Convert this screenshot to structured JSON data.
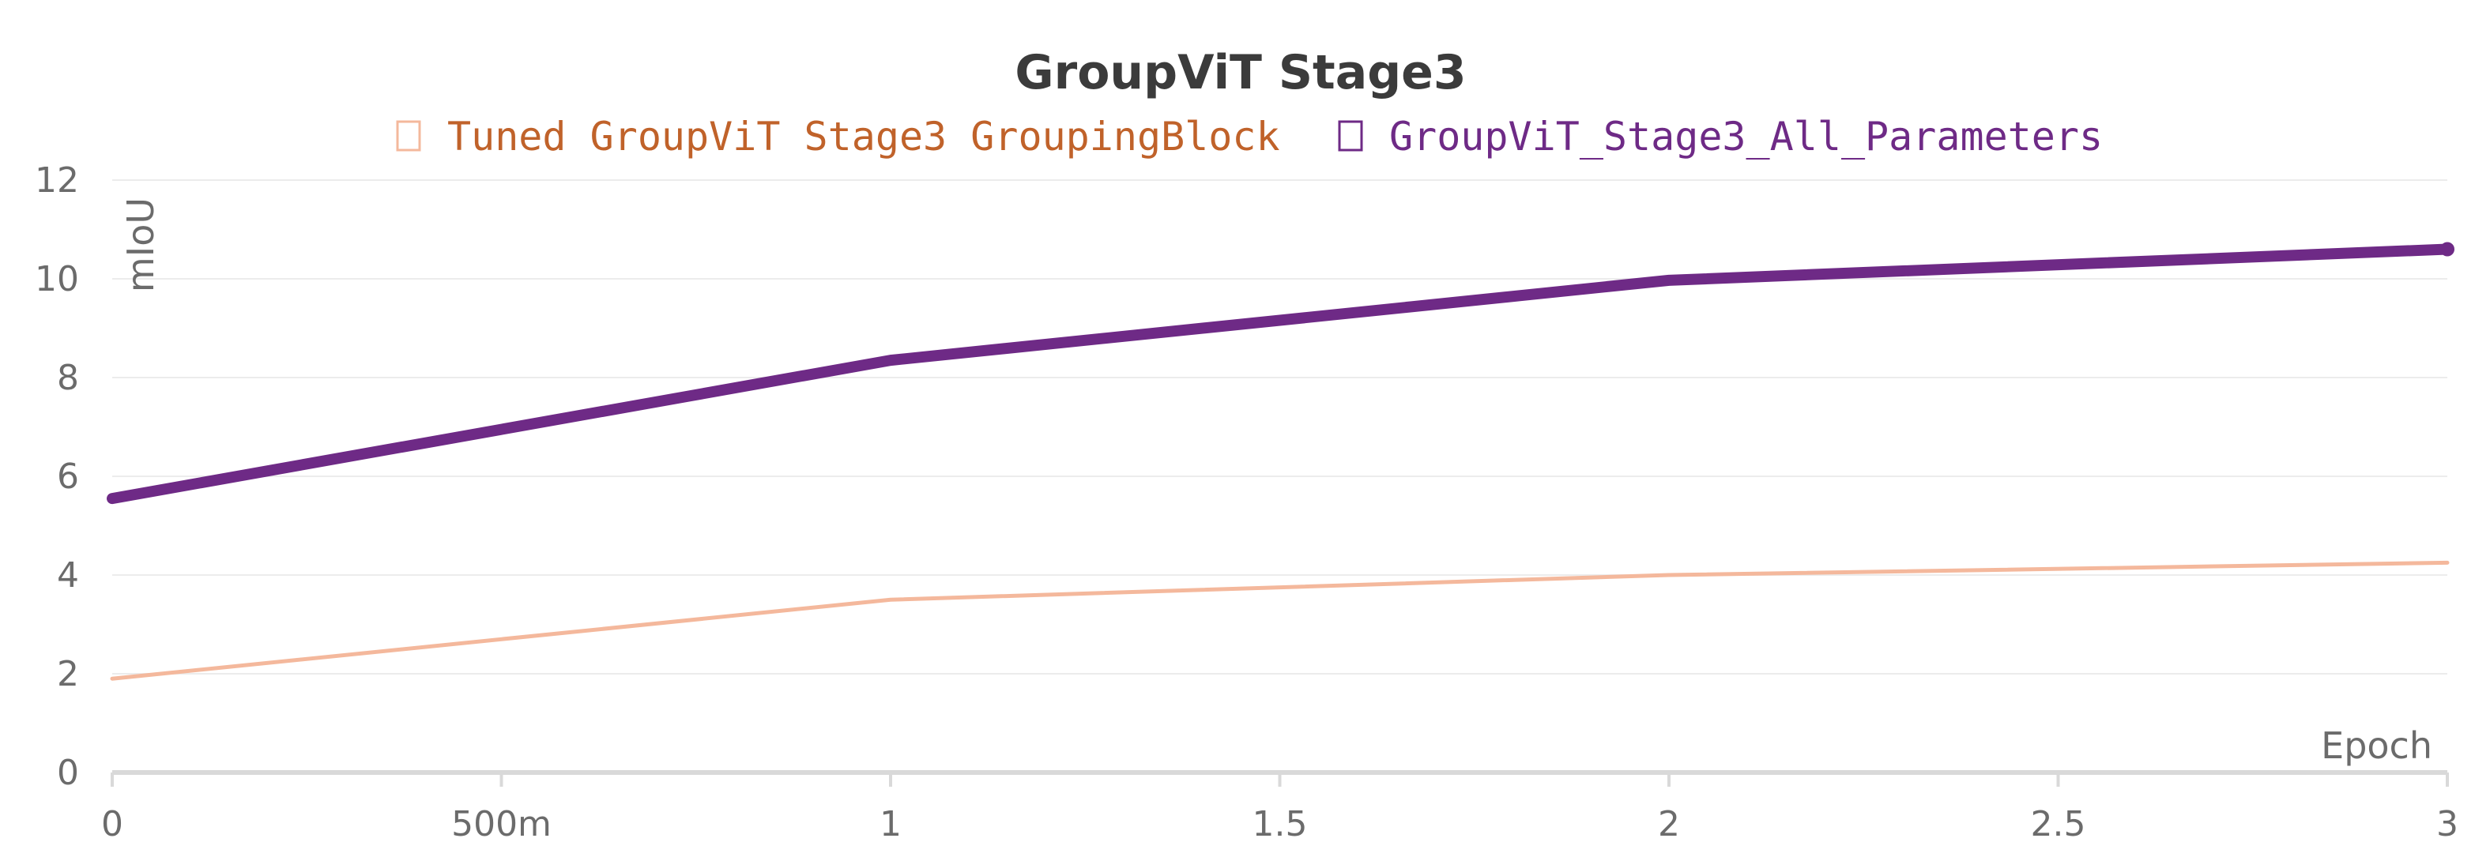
{
  "chart_data": {
    "type": "line",
    "title": "GroupViT Stage3",
    "xlabel": "Epoch",
    "ylabel": "mIoU",
    "xlim": [
      0,
      3
    ],
    "ylim": [
      0,
      12
    ],
    "x_ticks": [
      0,
      0.5,
      1,
      1.5,
      2,
      2.5,
      3
    ],
    "x_tick_labels": [
      "0",
      "500m",
      "1",
      "1.5",
      "2",
      "2.5",
      "3"
    ],
    "y_ticks": [
      0,
      2,
      4,
      6,
      8,
      10,
      12
    ],
    "y_tick_labels": [
      "0",
      "2",
      "4",
      "6",
      "8",
      "10",
      "12"
    ],
    "grid": true,
    "legend_position": "top-center",
    "series": [
      {
        "name": "Tuned GroupViT Stage3 GroupingBlock",
        "color": "#f4b89c",
        "legend_color": "#c0622a",
        "x": [
          0,
          1,
          2,
          3
        ],
        "y": [
          1.9,
          3.5,
          4.0,
          4.25
        ]
      },
      {
        "name": "GroupViT_Stage3_All_Parameters",
        "color": "#6e2a86",
        "legend_color": "#6e2a86",
        "x": [
          0,
          1,
          2,
          3
        ],
        "y": [
          5.55,
          8.35,
          9.97,
          10.6
        ]
      }
    ]
  }
}
